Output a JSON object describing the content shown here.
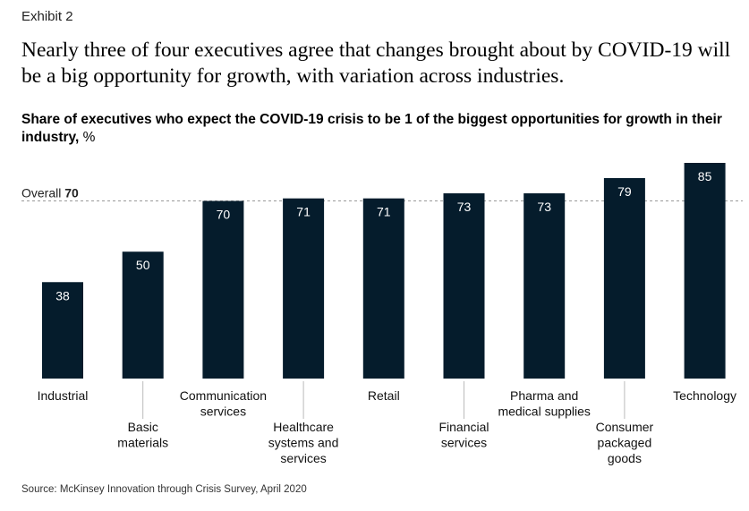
{
  "exhibit_label": "Exhibit 2",
  "headline": "Nearly three of four executives agree that changes brought about by COVID-19 will be a big opportunity for growth, with variation across industries.",
  "subtitle": {
    "text": "Share of executives who expect the COVID-19 crisis to be 1 of the biggest opportunities for growth in their industry,",
    "unit": "%"
  },
  "source": "Source: McKinsey Innovation through Crisis Survey, April 2020",
  "colors": {
    "bar": "#051c2c",
    "bar_label": "#ffffff",
    "reference_line": "#9a9a9a",
    "tick": "#bbbbbb"
  },
  "chart_data": {
    "type": "bar",
    "title": "Share of executives who expect the COVID-19 crisis to be 1 of the biggest opportunities for growth in their industry, %",
    "categories": [
      "Industrial",
      "Basic materials",
      "Communication services",
      "Healthcare systems and services",
      "Retail",
      "Financial services",
      "Pharma and medical supplies",
      "Consumer packaged goods",
      "Technology"
    ],
    "category_label_lines": [
      [
        "Industrial"
      ],
      [
        "Basic",
        "materials"
      ],
      [
        "Communication",
        "services"
      ],
      [
        "Healthcare",
        "systems and",
        "services"
      ],
      [
        "Retail"
      ],
      [
        "Financial",
        "services"
      ],
      [
        "Pharma and",
        "medical supplies"
      ],
      [
        "Consumer",
        "packaged",
        "goods"
      ],
      [
        "Technology"
      ]
    ],
    "values": [
      38,
      50,
      70,
      71,
      71,
      73,
      73,
      79,
      85
    ],
    "reference_line": {
      "label": "Overall",
      "value": 70
    },
    "ylim": [
      0,
      85
    ],
    "xlabel": "",
    "ylabel": "",
    "grid": false
  }
}
